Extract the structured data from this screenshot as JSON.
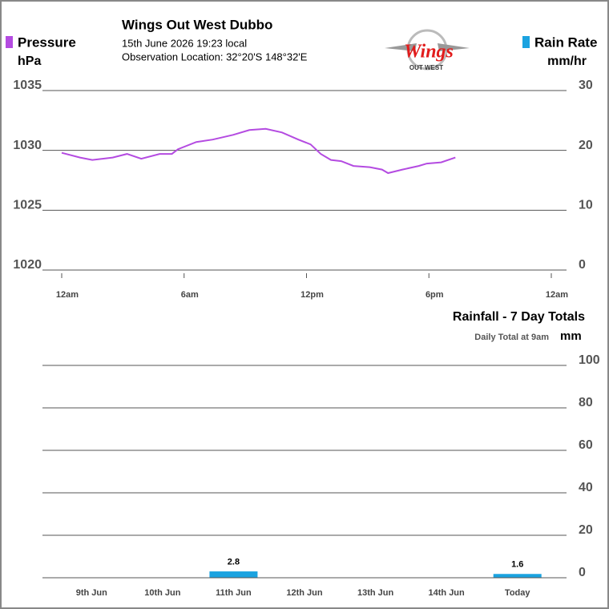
{
  "chart_data": [
    {
      "type": "line",
      "title": "Wings Out West Dubbo",
      "subtitle": [
        "15th June 2026  19:23 local",
        "Observation Location: 32°20'S 148°32'E"
      ],
      "logo": {
        "text": "Wings",
        "subtext": "OUT WEST"
      },
      "ylabel": "hPa",
      "y2label": "mm/hr",
      "x": [
        0,
        0.9,
        1.5,
        2.5,
        3.2,
        3.9,
        4.8,
        5.4,
        5.7,
        6.6,
        7.4,
        8.4,
        9.2,
        10.0,
        10.8,
        11.6,
        12.2,
        12.7,
        13.2,
        13.7,
        14.3,
        15.1,
        15.7,
        16.0,
        16.7,
        17.5,
        17.9,
        18.6,
        19.3
      ],
      "xlim": [
        0,
        24
      ],
      "xticks": [
        {
          "value": 0,
          "label": "12am"
        },
        {
          "value": 6,
          "label": "6am"
        },
        {
          "value": 12,
          "label": "12pm"
        },
        {
          "value": 18,
          "label": "6pm"
        },
        {
          "value": 24,
          "label": "12am"
        }
      ],
      "ylim": [
        1020,
        1035
      ],
      "yticks": [
        1020,
        1025,
        1030,
        1035
      ],
      "y2lim": [
        0,
        30
      ],
      "y2ticks": [
        0,
        10,
        20,
        30
      ],
      "grid": true,
      "series": [
        {
          "name": "Pressure",
          "color": "#b44be1",
          "values": [
            1029.8,
            1029.4,
            1029.2,
            1029.4,
            1029.7,
            1029.3,
            1029.7,
            1029.7,
            1030.1,
            1030.7,
            1030.9,
            1031.3,
            1031.7,
            1031.8,
            1031.5,
            1030.9,
            1030.5,
            1029.7,
            1029.2,
            1029.1,
            1028.7,
            1028.6,
            1028.4,
            1028.1,
            1028.4,
            1028.7,
            1028.9,
            1029.0,
            1029.4
          ]
        },
        {
          "name": "Rain Rate",
          "color": "#1ba3e0",
          "axis": "y2"
        }
      ]
    },
    {
      "type": "bar",
      "title": "Rainfall - 7 Day Totals",
      "subtitle": "Daily Total at 9am",
      "ylabel": "mm",
      "categories": [
        "9th Jun",
        "10th Jun",
        "11th Jun",
        "12th Jun",
        "13th Jun",
        "14th Jun",
        "Today"
      ],
      "values": [
        0,
        0,
        2.8,
        0,
        0,
        0,
        1.6
      ],
      "color": "#1ba3e0",
      "ylim": [
        0,
        100
      ],
      "yticks": [
        0,
        20,
        40,
        60,
        80,
        100
      ],
      "grid": true
    }
  ]
}
